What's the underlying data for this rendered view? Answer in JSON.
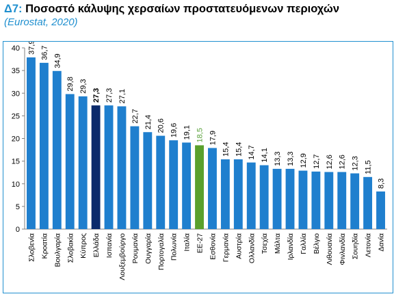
{
  "header": {
    "code": "Δ7:",
    "title": "Ποσοστό κάλυψης χερσαίων προστατευόμενων περιοχών",
    "subtitle": "(Eurostat, 2020)"
  },
  "colors": {
    "bar_default": "#1f7fce",
    "bar_greece": "#0b2a6b",
    "bar_eu": "#5aa02c",
    "axis": "#7f7f7f",
    "accent": "#1f8fcf"
  },
  "chart_data": {
    "type": "bar",
    "title": "Ποσοστό κάλυψης χερσαίων προστατευόμενων περιοχών",
    "xlabel": "",
    "ylabel": "",
    "ylim": [
      0,
      40
    ],
    "yticks": [
      0,
      5,
      10,
      15,
      20,
      25,
      30,
      35,
      40
    ],
    "grid": false,
    "categories": [
      "Σλοβενία",
      "Κροατία",
      "Βουλγαρία",
      "Σλοβακία",
      "Κύπρος",
      "Ελλάδα",
      "Ισπανία",
      "Λουξεμβούργο",
      "Ρουμανία",
      "Ουγγαρία",
      "Πορτογαλία",
      "Πολωνία",
      "Ιταλία",
      "ΕΕ-27",
      "Εσθονία",
      "Γερμανία",
      "Αυστρία",
      "Ολλανδία",
      "Τσεχία",
      "Μάλτα",
      "Ιρλανδία",
      "Γαλλία",
      "Βέλγιο",
      "Λιθουανία",
      "Φινλανδία",
      "Σουηδία",
      "Λετονία",
      "Δανία"
    ],
    "values": [
      37.9,
      36.7,
      34.9,
      29.8,
      29.3,
      27.3,
      27.3,
      27.1,
      22.7,
      21.4,
      20.6,
      19.6,
      19.1,
      18.5,
      17.9,
      15.4,
      15.4,
      14.7,
      14.1,
      13.3,
      13.3,
      12.9,
      12.7,
      12.6,
      12.6,
      12.3,
      11.5,
      8.3
    ],
    "value_labels": [
      "37,9",
      "36,7",
      "34,9",
      "29,8",
      "29,3",
      "27,3",
      "27,3",
      "27,1",
      "22,7",
      "21,4",
      "20,6",
      "19,6",
      "19,1",
      "18,5",
      "17,9",
      "15,4",
      "15,4",
      "14,7",
      "14,1",
      "13,3",
      "13,3",
      "12,9",
      "12,7",
      "12,6",
      "12,6",
      "12,3",
      "11,5",
      "8,3"
    ],
    "highlight": {
      "Ελλάδα": "greece",
      "ΕΕ-27": "eu"
    }
  }
}
